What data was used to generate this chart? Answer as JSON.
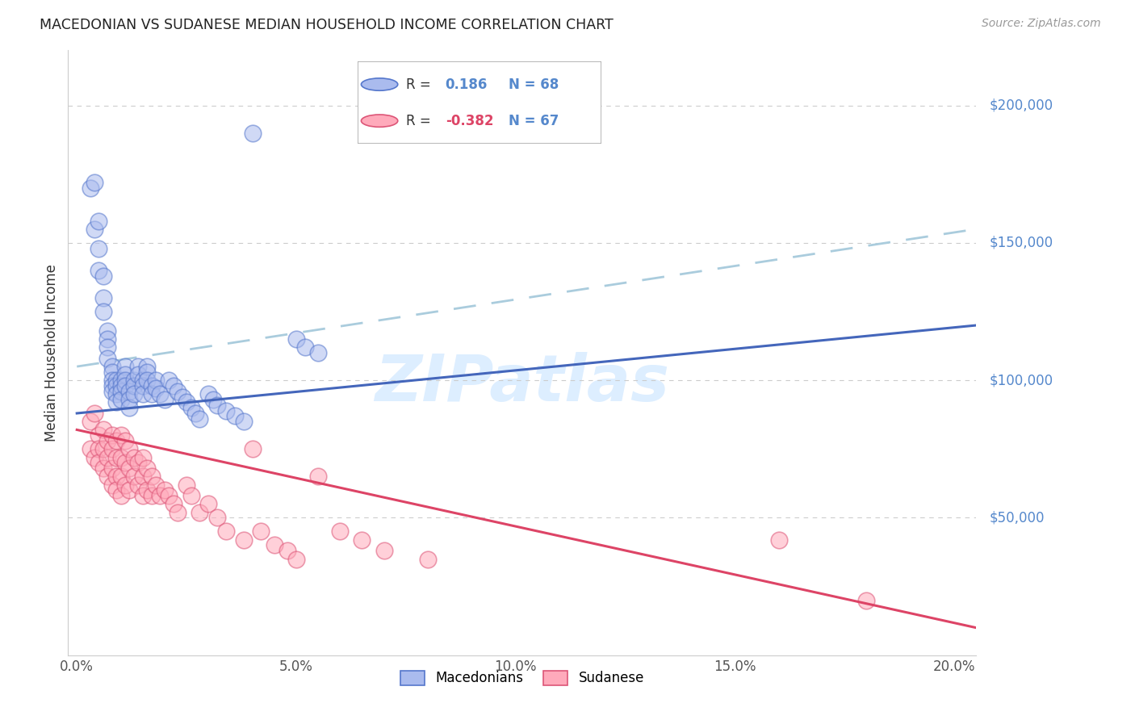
{
  "title": "MACEDONIAN VS SUDANESE MEDIAN HOUSEHOLD INCOME CORRELATION CHART",
  "source": "Source: ZipAtlas.com",
  "xlabel_ticks": [
    "0.0%",
    "5.0%",
    "10.0%",
    "15.0%",
    "20.0%"
  ],
  "xlabel_values": [
    0.0,
    0.05,
    0.1,
    0.15,
    0.2
  ],
  "ylabel": "Median Household Income",
  "ylim": [
    0,
    220000
  ],
  "xlim": [
    -0.002,
    0.205
  ],
  "ytick_values": [
    50000,
    100000,
    150000,
    200000
  ],
  "ytick_labels": [
    "$50,000",
    "$100,000",
    "$150,000",
    "$200,000"
  ],
  "macedonian_R": 0.186,
  "macedonian_N": 68,
  "sudanese_R": -0.382,
  "sudanese_N": 67,
  "blue_fill": "#aabbee",
  "blue_edge": "#5577cc",
  "pink_fill": "#ffaabb",
  "pink_edge": "#dd5577",
  "blue_line": "#4466bb",
  "pink_line": "#dd4466",
  "blue_dash": "#aaccdd",
  "grid_color": "#cccccc",
  "right_label_color": "#5588cc",
  "watermark_color": "#ddeeff",
  "macedonians_x": [
    0.003,
    0.004,
    0.004,
    0.005,
    0.005,
    0.005,
    0.006,
    0.006,
    0.006,
    0.007,
    0.007,
    0.007,
    0.007,
    0.008,
    0.008,
    0.008,
    0.008,
    0.008,
    0.009,
    0.009,
    0.009,
    0.009,
    0.01,
    0.01,
    0.01,
    0.01,
    0.011,
    0.011,
    0.011,
    0.011,
    0.012,
    0.012,
    0.012,
    0.013,
    0.013,
    0.013,
    0.014,
    0.014,
    0.015,
    0.015,
    0.015,
    0.016,
    0.016,
    0.016,
    0.017,
    0.017,
    0.018,
    0.018,
    0.019,
    0.02,
    0.021,
    0.022,
    0.023,
    0.024,
    0.025,
    0.026,
    0.027,
    0.028,
    0.03,
    0.031,
    0.032,
    0.034,
    0.036,
    0.038,
    0.04,
    0.05,
    0.052,
    0.055
  ],
  "macedonians_y": [
    170000,
    172000,
    155000,
    158000,
    148000,
    140000,
    138000,
    130000,
    125000,
    118000,
    115000,
    112000,
    108000,
    105000,
    103000,
    100000,
    98000,
    96000,
    100000,
    98000,
    95000,
    92000,
    100000,
    98000,
    96000,
    93000,
    105000,
    102000,
    100000,
    98000,
    96000,
    93000,
    90000,
    100000,
    98000,
    95000,
    105000,
    102000,
    100000,
    98000,
    95000,
    105000,
    103000,
    100000,
    98000,
    95000,
    100000,
    97000,
    95000,
    93000,
    100000,
    98000,
    96000,
    94000,
    92000,
    90000,
    88000,
    86000,
    95000,
    93000,
    91000,
    89000,
    87000,
    85000,
    190000,
    115000,
    112000,
    110000
  ],
  "sudanese_x": [
    0.003,
    0.003,
    0.004,
    0.004,
    0.005,
    0.005,
    0.005,
    0.006,
    0.006,
    0.006,
    0.007,
    0.007,
    0.007,
    0.008,
    0.008,
    0.008,
    0.008,
    0.009,
    0.009,
    0.009,
    0.009,
    0.01,
    0.01,
    0.01,
    0.01,
    0.011,
    0.011,
    0.011,
    0.012,
    0.012,
    0.012,
    0.013,
    0.013,
    0.014,
    0.014,
    0.015,
    0.015,
    0.015,
    0.016,
    0.016,
    0.017,
    0.017,
    0.018,
    0.019,
    0.02,
    0.021,
    0.022,
    0.023,
    0.025,
    0.026,
    0.028,
    0.03,
    0.032,
    0.034,
    0.038,
    0.04,
    0.042,
    0.045,
    0.048,
    0.05,
    0.055,
    0.06,
    0.065,
    0.07,
    0.08,
    0.16,
    0.18
  ],
  "sudanese_y": [
    85000,
    75000,
    88000,
    72000,
    80000,
    75000,
    70000,
    82000,
    75000,
    68000,
    78000,
    72000,
    65000,
    80000,
    75000,
    68000,
    62000,
    78000,
    72000,
    65000,
    60000,
    80000,
    72000,
    65000,
    58000,
    78000,
    70000,
    62000,
    75000,
    68000,
    60000,
    72000,
    65000,
    70000,
    62000,
    72000,
    65000,
    58000,
    68000,
    60000,
    65000,
    58000,
    62000,
    58000,
    60000,
    58000,
    55000,
    52000,
    62000,
    58000,
    52000,
    55000,
    50000,
    45000,
    42000,
    75000,
    45000,
    40000,
    38000,
    35000,
    65000,
    45000,
    42000,
    38000,
    35000,
    42000,
    20000
  ],
  "mac_line_x": [
    0.0,
    0.205
  ],
  "mac_line_y": [
    88000,
    120000
  ],
  "sud_line_x": [
    0.0,
    0.205
  ],
  "sud_line_y": [
    82000,
    10000
  ],
  "dash_line_x": [
    0.0,
    0.205
  ],
  "dash_line_y": [
    105000,
    155000
  ]
}
